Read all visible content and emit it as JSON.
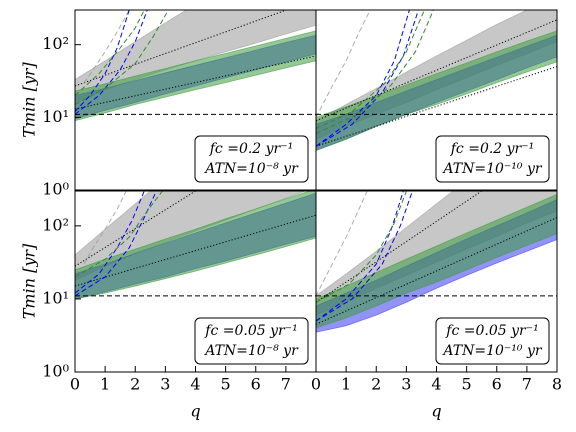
{
  "chart_data": [
    {
      "type": "line",
      "ylabel": "Tmin  [yr]",
      "annotation": [
        "fc =0.2 yr⁻¹",
        "ATN=10⁻⁸ yr"
      ],
      "xlim": [
        0,
        8
      ],
      "ylim": [
        1,
        300
      ],
      "log_y": true,
      "yticks": [
        {
          "value": 1,
          "label": "10⁰"
        },
        {
          "value": 10,
          "label": "10¹"
        },
        {
          "value": 100,
          "label": "10²"
        }
      ],
      "series": [
        {
          "kind": "band",
          "color": "#999999",
          "x": [
            0,
            1,
            2,
            3,
            4,
            5,
            6,
            7,
            8
          ],
          "lower": [
            16,
            24,
            33,
            45,
            60,
            80,
            105,
            140,
            185
          ],
          "upper": [
            33,
            60,
            110,
            200,
            360,
            650,
            1200,
            2200,
            4000
          ]
        },
        {
          "kind": "band",
          "color": "#3a3af0",
          "x": [
            0,
            1,
            2,
            3,
            4,
            5,
            6,
            7,
            8
          ],
          "lower": [
            9.5,
            12.5,
            16,
            21,
            27,
            35,
            45,
            58,
            75
          ],
          "upper": [
            20,
            25,
            32,
            41,
            52,
            66,
            84,
            107,
            135
          ]
        },
        {
          "kind": "band",
          "color": "#3c9a3c",
          "x": [
            0,
            1,
            2,
            3,
            4,
            5,
            6,
            7,
            8
          ],
          "lower": [
            9,
            11.5,
            15,
            19,
            24,
            30,
            38,
            48,
            60
          ],
          "upper": [
            23,
            29,
            37,
            47,
            60,
            76,
            96,
            122,
            155
          ]
        },
        {
          "kind": "line",
          "style": "dotted",
          "color": "#000000",
          "x": [
            0,
            8
          ],
          "values": [
            13,
            70
          ]
        },
        {
          "kind": "line",
          "style": "dotted",
          "color": "#000000",
          "x": [
            0,
            8
          ],
          "values": [
            27,
            420
          ]
        },
        {
          "kind": "line",
          "style": "dashed",
          "color": "#999999",
          "x": [
            0.3,
            0.6,
            1,
            1.4,
            1.8
          ],
          "values": [
            30,
            45,
            80,
            150,
            300
          ]
        },
        {
          "kind": "line",
          "style": "dashed",
          "color": "#0000ff",
          "x": [
            0,
            0.5,
            1,
            1.4,
            1.8
          ],
          "values": [
            12,
            20,
            40,
            90,
            300
          ]
        },
        {
          "kind": "line",
          "style": "dashed",
          "color": "#0000ff",
          "x": [
            0,
            0.8,
            1.5,
            2,
            2.4
          ],
          "values": [
            11,
            20,
            45,
            110,
            300
          ]
        },
        {
          "kind": "line",
          "style": "dashed",
          "color": "#2e8b2e",
          "x": [
            0,
            0.8,
            1.5,
            2,
            2.3
          ],
          "values": [
            20,
            40,
            90,
            170,
            300
          ]
        },
        {
          "kind": "line",
          "style": "dashed",
          "color": "#2e8b2e",
          "x": [
            0,
            1,
            2,
            2.6,
            3.1
          ],
          "values": [
            15,
            25,
            55,
            130,
            300
          ]
        },
        {
          "kind": "line",
          "style": "dashed",
          "color": "#000000",
          "x": [
            0,
            8
          ],
          "values": [
            11,
            11
          ]
        }
      ]
    },
    {
      "type": "line",
      "annotation": [
        "fc =0.2 yr⁻¹",
        "ATN=10⁻¹⁰ yr"
      ],
      "xlim": [
        0,
        8
      ],
      "ylim": [
        1,
        300
      ],
      "log_y": true,
      "series": [
        {
          "kind": "band",
          "color": "#999999",
          "x": [
            0,
            1,
            2,
            3,
            4,
            5,
            6,
            7,
            8
          ],
          "lower": [
            5,
            7.5,
            11,
            16,
            24,
            35,
            52,
            75,
            110
          ],
          "upper": [
            9,
            15,
            25,
            42,
            70,
            115,
            190,
            300,
            480
          ]
        },
        {
          "kind": "band",
          "color": "#3a3af0",
          "x": [
            0,
            1,
            2,
            3,
            4,
            5,
            6,
            7,
            8
          ],
          "lower": [
            3.5,
            5,
            7.5,
            11,
            16,
            23,
            33,
            48,
            68
          ],
          "upper": [
            8,
            11,
            16,
            23,
            33,
            47,
            67,
            95,
            135
          ]
        },
        {
          "kind": "band",
          "color": "#3c9a3c",
          "x": [
            0,
            1,
            2,
            3,
            4,
            5,
            6,
            7,
            8
          ],
          "lower": [
            3.5,
            5,
            7.5,
            11,
            15,
            21,
            30,
            42,
            58
          ],
          "upper": [
            10,
            14,
            20,
            28,
            40,
            56,
            80,
            112,
            155
          ]
        },
        {
          "kind": "line",
          "style": "dotted",
          "color": "#000000",
          "x": [
            0,
            8
          ],
          "values": [
            4,
            50
          ]
        },
        {
          "kind": "line",
          "style": "dotted",
          "color": "#000000",
          "x": [
            0,
            8
          ],
          "values": [
            9,
            220
          ]
        },
        {
          "kind": "line",
          "style": "dashed",
          "color": "#999999",
          "x": [
            0,
            0.5,
            1,
            1.4,
            1.8
          ],
          "values": [
            10,
            25,
            60,
            140,
            300
          ]
        },
        {
          "kind": "line",
          "style": "dashed",
          "color": "#0000ff",
          "x": [
            0,
            1,
            2,
            2.6,
            3.1
          ],
          "values": [
            4,
            8,
            20,
            60,
            300
          ]
        },
        {
          "kind": "line",
          "style": "dashed",
          "color": "#0000ff",
          "x": [
            0,
            1.2,
            2.2,
            2.9,
            3.4
          ],
          "values": [
            4,
            8,
            22,
            70,
            300
          ]
        },
        {
          "kind": "line",
          "style": "dashed",
          "color": "#2e8b2e",
          "x": [
            0,
            1.2,
            2.3,
            3,
            3.6
          ],
          "values": [
            7,
            12,
            30,
            80,
            300
          ]
        },
        {
          "kind": "line",
          "style": "dashed",
          "color": "#2e8b2e",
          "x": [
            0,
            1.4,
            2.5,
            3.3,
            3.9
          ],
          "values": [
            6,
            11,
            28,
            80,
            300
          ]
        },
        {
          "kind": "line",
          "style": "dashed",
          "color": "#000000",
          "x": [
            0,
            8
          ],
          "values": [
            11,
            11
          ]
        }
      ]
    },
    {
      "type": "line",
      "ylabel": "Tmin  [yr]",
      "xlabel": "q",
      "annotation": [
        "fc =0.05 yr⁻¹",
        "ATN=10⁻⁸ yr"
      ],
      "xlim": [
        0,
        8
      ],
      "ylim": [
        1,
        300
      ],
      "log_y": true,
      "xticks": [
        0,
        1,
        2,
        3,
        4,
        5,
        6,
        7
      ],
      "yticks": [
        {
          "value": 1,
          "label": "10⁰"
        },
        {
          "value": 10,
          "label": "10¹"
        },
        {
          "value": 100,
          "label": "10²"
        }
      ],
      "series": [
        {
          "kind": "band",
          "color": "#999999",
          "x": [
            0,
            1,
            2,
            3,
            4,
            5,
            6,
            7,
            8
          ],
          "lower": [
            18,
            28,
            42,
            60,
            85,
            120,
            170,
            240,
            340
          ],
          "upper": [
            40,
            90,
            200,
            450,
            1000,
            2200,
            4800,
            9000,
            16000
          ]
        },
        {
          "kind": "band",
          "color": "#3a3af0",
          "x": [
            0,
            1,
            2,
            3,
            4,
            5,
            6,
            7,
            8
          ],
          "lower": [
            10,
            12.5,
            16,
            20,
            26,
            33,
            43,
            56,
            72
          ],
          "upper": [
            22,
            30,
            42,
            58,
            80,
            110,
            150,
            205,
            280
          ]
        },
        {
          "kind": "band",
          "color": "#3c9a3c",
          "x": [
            0,
            1,
            2,
            3,
            4,
            5,
            6,
            7,
            8
          ],
          "lower": [
            10,
            12,
            15,
            19,
            24,
            31,
            40,
            52,
            68
          ],
          "upper": [
            25,
            35,
            48,
            66,
            90,
            125,
            170,
            235,
            320
          ]
        },
        {
          "kind": "line",
          "style": "dotted",
          "color": "#000000",
          "x": [
            0,
            8
          ],
          "values": [
            15,
            140
          ]
        },
        {
          "kind": "line",
          "style": "dotted",
          "color": "#000000",
          "x": [
            0,
            4
          ],
          "values": [
            28,
            300
          ]
        },
        {
          "kind": "line",
          "style": "dashed",
          "color": "#999999",
          "x": [
            0.3,
            0.6,
            1,
            1.4,
            1.7
          ],
          "values": [
            30,
            50,
            90,
            170,
            300
          ]
        },
        {
          "kind": "line",
          "style": "dashed",
          "color": "#0000ff",
          "x": [
            0,
            0.8,
            1.4,
            1.9,
            2.3
          ],
          "values": [
            12,
            22,
            50,
            120,
            300
          ]
        },
        {
          "kind": "line",
          "style": "dashed",
          "color": "#0000ff",
          "x": [
            0,
            1,
            1.8,
            2.3,
            2.7
          ],
          "values": [
            11,
            20,
            50,
            130,
            300
          ]
        },
        {
          "kind": "line",
          "style": "dashed",
          "color": "#2e8b2e",
          "x": [
            0,
            1,
            1.8,
            2.4,
            2.9
          ],
          "values": [
            20,
            35,
            70,
            160,
            300
          ]
        },
        {
          "kind": "line",
          "style": "dashed",
          "color": "#000000",
          "x": [
            0,
            8
          ],
          "values": [
            11,
            11
          ]
        }
      ]
    },
    {
      "type": "line",
      "xlabel": "q",
      "annotation": [
        "fc =0.05 yr⁻¹",
        "ATN=10⁻¹⁰ yr"
      ],
      "xlim": [
        0,
        8
      ],
      "ylim": [
        1,
        300
      ],
      "log_y": true,
      "xticks": [
        0,
        1,
        2,
        3,
        4,
        5,
        6,
        7,
        8
      ],
      "series": [
        {
          "kind": "band",
          "color": "#999999",
          "x": [
            0,
            1,
            2,
            3,
            4,
            5,
            6,
            7,
            8
          ],
          "lower": [
            6,
            9,
            14,
            21,
            32,
            48,
            72,
            110,
            160
          ],
          "upper": [
            11,
            22,
            45,
            95,
            200,
            420,
            900,
            1800,
            3600
          ]
        },
        {
          "kind": "band",
          "color": "#3a3af0",
          "x": [
            0,
            1,
            2,
            3,
            4,
            5,
            6,
            7,
            8
          ],
          "lower": [
            3.5,
            4.3,
            6,
            9,
            14,
            21,
            31,
            45,
            65
          ],
          "upper": [
            8,
            12,
            18,
            28,
            43,
            66,
            100,
            150,
            230
          ]
        },
        {
          "kind": "band",
          "color": "#3c9a3c",
          "x": [
            0,
            1,
            2,
            3,
            4,
            5,
            6,
            7,
            8
          ],
          "lower": [
            4,
            5.5,
            8,
            12,
            17,
            25,
            37,
            54,
            78
          ],
          "upper": [
            10,
            15,
            23,
            35,
            53,
            80,
            120,
            180,
            270
          ]
        },
        {
          "kind": "line",
          "style": "dotted",
          "color": "#000000",
          "x": [
            0,
            8
          ],
          "values": [
            4.5,
            130
          ]
        },
        {
          "kind": "line",
          "style": "dotted",
          "color": "#000000",
          "x": [
            0,
            5.5
          ],
          "values": [
            9,
            300
          ]
        },
        {
          "kind": "line",
          "style": "dashed",
          "color": "#999999",
          "x": [
            0,
            0.5,
            1,
            1.4,
            1.7
          ],
          "values": [
            11,
            28,
            70,
            160,
            300
          ]
        },
        {
          "kind": "line",
          "style": "dashed",
          "color": "#0000ff",
          "x": [
            0,
            1,
            2,
            2.5,
            2.9
          ],
          "values": [
            5,
            10,
            30,
            90,
            300
          ]
        },
        {
          "kind": "line",
          "style": "dashed",
          "color": "#0000ff",
          "x": [
            0,
            1.2,
            2.2,
            2.8,
            3.2
          ],
          "values": [
            5,
            10,
            30,
            100,
            300
          ]
        },
        {
          "kind": "line",
          "style": "dashed",
          "color": "#2e8b2e",
          "x": [
            0,
            1.1,
            2,
            2.6,
            3
          ],
          "values": [
            9,
            16,
            40,
            110,
            300
          ]
        },
        {
          "kind": "line",
          "style": "dashed",
          "color": "#000000",
          "x": [
            0,
            8
          ],
          "values": [
            11,
            11
          ]
        }
      ]
    }
  ]
}
